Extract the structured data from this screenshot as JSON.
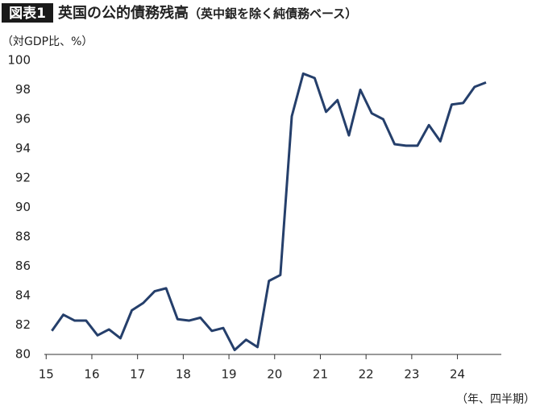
{
  "chart_data": {
    "type": "line",
    "figure_label": "図表1",
    "title": "英国の公的債務残高",
    "subtitle": "（英中銀を除く純債務ベース）",
    "y_label": "（対GDP比、%）",
    "x_label": "（年、四半期）",
    "x": [
      15.125,
      15.375,
      15.625,
      15.875,
      16.125,
      16.375,
      16.625,
      16.875,
      17.125,
      17.375,
      17.625,
      17.875,
      18.125,
      18.375,
      18.625,
      18.875,
      19.125,
      19.375,
      19.625,
      19.875,
      20.125,
      20.375,
      20.625,
      20.875,
      21.125,
      21.375,
      21.625,
      21.875,
      22.125,
      22.375,
      22.625,
      22.875,
      23.125,
      23.375,
      23.625,
      23.875,
      24.125,
      24.375,
      24.625
    ],
    "series": [
      {
        "name": "公的債務残高",
        "color": "#253f6b",
        "values": [
          81.6,
          82.7,
          82.3,
          82.3,
          81.3,
          81.7,
          81.1,
          83.0,
          83.5,
          84.3,
          84.5,
          82.4,
          82.3,
          82.5,
          81.6,
          81.8,
          80.3,
          81.0,
          80.5,
          85.0,
          85.4,
          96.2,
          99.1,
          98.8,
          96.5,
          97.3,
          94.9,
          98.0,
          96.4,
          96.0,
          94.3,
          94.2,
          94.2,
          95.6,
          94.5,
          97.0,
          97.1,
          98.2,
          98.5
        ]
      }
    ],
    "xlim": [
      14.96,
      24.96
    ],
    "xticks": [
      15,
      16,
      17,
      18,
      19,
      20,
      21,
      22,
      23,
      24
    ],
    "ylim": [
      80,
      100
    ],
    "yticks": [
      80,
      82,
      84,
      86,
      88,
      90,
      92,
      94,
      96,
      98,
      100
    ],
    "grid": false
  }
}
